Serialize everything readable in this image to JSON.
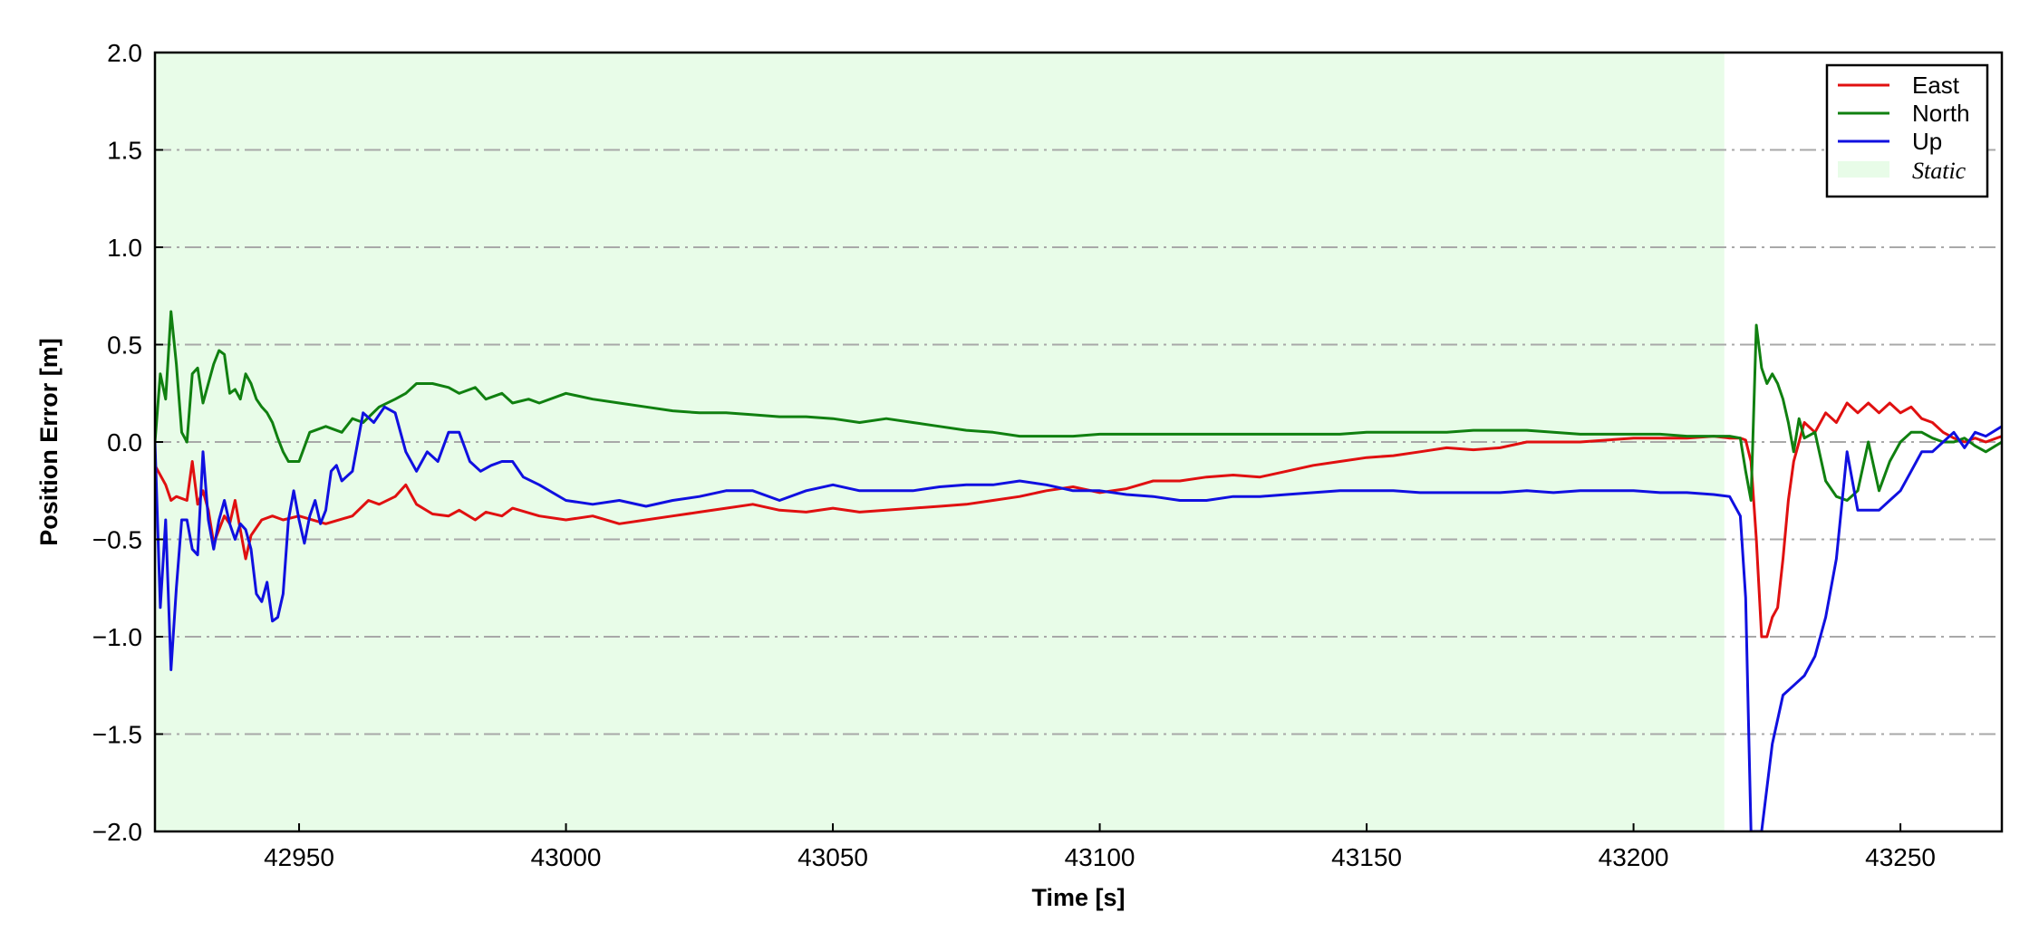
{
  "chart_data": {
    "type": "line",
    "xlabel": "Time [s]",
    "ylabel": "Position Error [m]",
    "xlim": [
      42923,
      43269
    ],
    "ylim": [
      -2.0,
      2.0
    ],
    "xticks": [
      42950,
      43000,
      43050,
      43100,
      43150,
      43200,
      43250
    ],
    "xtick_labels": [
      "42950",
      "43000",
      "43050",
      "43100",
      "43150",
      "43200",
      "43250"
    ],
    "yticks": [
      -2.0,
      -1.5,
      -1.0,
      -0.5,
      0.0,
      0.5,
      1.0,
      1.5,
      2.0
    ],
    "ytick_labels": [
      "−2.0",
      "−1.5",
      "−1.0",
      "−0.5",
      "0.0",
      "0.5",
      "1.0",
      "1.5",
      "2.0"
    ],
    "grid": "horizontal dash-dot",
    "legend_position": "top-right",
    "static_span": {
      "label": "Static",
      "start": 42923,
      "end": 43217,
      "color": "#e8fce8"
    },
    "series": [
      {
        "name": "East",
        "color": "#e01010",
        "x": [
          42923,
          42925,
          42926,
          42927,
          42929,
          42930,
          42931,
          42932,
          42933,
          42934,
          42935,
          42936,
          42937,
          42938,
          42939,
          42940,
          42941,
          42943,
          42945,
          42947,
          42950,
          42955,
          42960,
          42963,
          42965,
          42968,
          42970,
          42972,
          42975,
          42978,
          42980,
          42983,
          42985,
          42988,
          42990,
          42995,
          43000,
          43005,
          43010,
          43015,
          43020,
          43025,
          43030,
          43035,
          43040,
          43045,
          43050,
          43055,
          43060,
          43065,
          43070,
          43075,
          43080,
          43085,
          43090,
          43095,
          43100,
          43105,
          43110,
          43115,
          43120,
          43125,
          43130,
          43135,
          43140,
          43145,
          43150,
          43155,
          43160,
          43165,
          43170,
          43175,
          43180,
          43185,
          43190,
          43195,
          43200,
          43205,
          43210,
          43215,
          43218,
          43220,
          43221,
          43222,
          43223,
          43224,
          43225,
          43226,
          43227,
          43228,
          43229,
          43230,
          43232,
          43234,
          43236,
          43238,
          43240,
          43242,
          43244,
          43246,
          43248,
          43250,
          43252,
          43254,
          43256,
          43258,
          43260,
          43262,
          43264,
          43266,
          43269
        ],
        "values": [
          -0.12,
          -0.22,
          -0.3,
          -0.28,
          -0.3,
          -0.1,
          -0.32,
          -0.25,
          -0.35,
          -0.52,
          -0.45,
          -0.38,
          -0.42,
          -0.3,
          -0.45,
          -0.6,
          -0.48,
          -0.4,
          -0.38,
          -0.4,
          -0.38,
          -0.42,
          -0.38,
          -0.3,
          -0.32,
          -0.28,
          -0.22,
          -0.32,
          -0.37,
          -0.38,
          -0.35,
          -0.4,
          -0.36,
          -0.38,
          -0.34,
          -0.38,
          -0.4,
          -0.38,
          -0.42,
          -0.4,
          -0.38,
          -0.36,
          -0.34,
          -0.32,
          -0.35,
          -0.36,
          -0.34,
          -0.36,
          -0.35,
          -0.34,
          -0.33,
          -0.32,
          -0.3,
          -0.28,
          -0.25,
          -0.23,
          -0.26,
          -0.24,
          -0.2,
          -0.2,
          -0.18,
          -0.17,
          -0.18,
          -0.15,
          -0.12,
          -0.1,
          -0.08,
          -0.07,
          -0.05,
          -0.03,
          -0.04,
          -0.03,
          0.0,
          0.0,
          0.0,
          0.01,
          0.02,
          0.02,
          0.02,
          0.03,
          0.02,
          0.02,
          0.01,
          -0.1,
          -0.5,
          -1.0,
          -1.0,
          -0.9,
          -0.85,
          -0.6,
          -0.3,
          -0.1,
          0.1,
          0.05,
          0.15,
          0.1,
          0.2,
          0.15,
          0.2,
          0.15,
          0.2,
          0.15,
          0.18,
          0.12,
          0.1,
          0.05,
          0.02,
          0.0,
          0.02,
          0.0,
          0.03
        ]
      },
      {
        "name": "North",
        "color": "#108010",
        "x": [
          42923,
          42924,
          42925,
          42926,
          42927,
          42928,
          42929,
          42930,
          42931,
          42932,
          42933,
          42934,
          42935,
          42936,
          42937,
          42938,
          42939,
          42940,
          42941,
          42942,
          42943,
          42944,
          42945,
          42946,
          42947,
          42948,
          42950,
          42952,
          42955,
          42958,
          42960,
          42962,
          42965,
          42968,
          42970,
          42972,
          42975,
          42978,
          42980,
          42983,
          42985,
          42988,
          42990,
          42993,
          42995,
          43000,
          43005,
          43010,
          43015,
          43020,
          43025,
          43030,
          43035,
          43040,
          43045,
          43050,
          43055,
          43060,
          43065,
          43070,
          43075,
          43080,
          43085,
          43090,
          43095,
          43100,
          43105,
          43110,
          43115,
          43120,
          43125,
          43130,
          43135,
          43140,
          43145,
          43150,
          43155,
          43160,
          43165,
          43170,
          43175,
          43180,
          43185,
          43190,
          43195,
          43200,
          43205,
          43210,
          43215,
          43218,
          43220,
          43221,
          43222,
          43223,
          43224,
          43225,
          43226,
          43227,
          43228,
          43229,
          43230,
          43231,
          43232,
          43234,
          43236,
          43238,
          43240,
          43242,
          43244,
          43246,
          43248,
          43250,
          43252,
          43254,
          43256,
          43258,
          43260,
          43262,
          43264,
          43266,
          43269
        ],
        "values": [
          0.0,
          0.35,
          0.22,
          0.67,
          0.4,
          0.05,
          0.0,
          0.35,
          0.38,
          0.2,
          0.3,
          0.4,
          0.47,
          0.45,
          0.25,
          0.27,
          0.22,
          0.35,
          0.3,
          0.22,
          0.18,
          0.15,
          0.1,
          0.02,
          -0.05,
          -0.1,
          -0.1,
          0.05,
          0.08,
          0.05,
          0.12,
          0.1,
          0.18,
          0.22,
          0.25,
          0.3,
          0.3,
          0.28,
          0.25,
          0.28,
          0.22,
          0.25,
          0.2,
          0.22,
          0.2,
          0.25,
          0.22,
          0.2,
          0.18,
          0.16,
          0.15,
          0.15,
          0.14,
          0.13,
          0.13,
          0.12,
          0.1,
          0.12,
          0.1,
          0.08,
          0.06,
          0.05,
          0.03,
          0.03,
          0.03,
          0.04,
          0.04,
          0.04,
          0.04,
          0.04,
          0.04,
          0.04,
          0.04,
          0.04,
          0.04,
          0.05,
          0.05,
          0.05,
          0.05,
          0.06,
          0.06,
          0.06,
          0.05,
          0.04,
          0.04,
          0.04,
          0.04,
          0.03,
          0.03,
          0.03,
          0.02,
          -0.15,
          -0.3,
          0.6,
          0.38,
          0.3,
          0.35,
          0.3,
          0.22,
          0.1,
          -0.05,
          0.12,
          0.02,
          0.05,
          -0.2,
          -0.28,
          -0.3,
          -0.25,
          0.0,
          -0.25,
          -0.1,
          0.0,
          0.05,
          0.05,
          0.02,
          0.0,
          0.0,
          0.02,
          -0.02,
          -0.05,
          0.0
        ]
      },
      {
        "name": "Up",
        "color": "#1010e0",
        "x": [
          42923,
          42924,
          42925,
          42926,
          42927,
          42928,
          42929,
          42930,
          42931,
          42932,
          42933,
          42934,
          42935,
          42936,
          42937,
          42938,
          42939,
          42940,
          42941,
          42942,
          42943,
          42944,
          42945,
          42946,
          42947,
          42948,
          42949,
          42950,
          42951,
          42952,
          42953,
          42954,
          42955,
          42956,
          42957,
          42958,
          42960,
          42962,
          42964,
          42966,
          42968,
          42970,
          42972,
          42974,
          42976,
          42978,
          42980,
          42982,
          42984,
          42986,
          42988,
          42990,
          42992,
          42995,
          43000,
          43005,
          43010,
          43015,
          43020,
          43025,
          43030,
          43035,
          43040,
          43045,
          43050,
          43055,
          43060,
          43065,
          43070,
          43075,
          43080,
          43085,
          43090,
          43095,
          43100,
          43105,
          43110,
          43115,
          43120,
          43125,
          43130,
          43135,
          43140,
          43145,
          43150,
          43155,
          43160,
          43165,
          43170,
          43175,
          43180,
          43185,
          43190,
          43195,
          43200,
          43205,
          43210,
          43215,
          43218,
          43220,
          43221,
          43222,
          43223,
          43224,
          43226,
          43228,
          43230,
          43232,
          43234,
          43236,
          43238,
          43240,
          43242,
          43244,
          43246,
          43248,
          43250,
          43252,
          43254,
          43256,
          43258,
          43260,
          43262,
          43264,
          43266,
          43269
        ],
        "values": [
          0.0,
          -0.85,
          -0.4,
          -1.17,
          -0.75,
          -0.4,
          -0.4,
          -0.55,
          -0.58,
          -0.05,
          -0.4,
          -0.55,
          -0.4,
          -0.3,
          -0.42,
          -0.5,
          -0.42,
          -0.45,
          -0.55,
          -0.78,
          -0.82,
          -0.72,
          -0.92,
          -0.9,
          -0.78,
          -0.4,
          -0.25,
          -0.4,
          -0.52,
          -0.38,
          -0.3,
          -0.42,
          -0.35,
          -0.15,
          -0.12,
          -0.2,
          -0.15,
          0.15,
          0.1,
          0.18,
          0.15,
          -0.05,
          -0.15,
          -0.05,
          -0.1,
          0.05,
          0.05,
          -0.1,
          -0.15,
          -0.12,
          -0.1,
          -0.1,
          -0.18,
          -0.22,
          -0.3,
          -0.32,
          -0.3,
          -0.33,
          -0.3,
          -0.28,
          -0.25,
          -0.25,
          -0.3,
          -0.25,
          -0.22,
          -0.25,
          -0.25,
          -0.25,
          -0.23,
          -0.22,
          -0.22,
          -0.2,
          -0.22,
          -0.25,
          -0.25,
          -0.27,
          -0.28,
          -0.3,
          -0.3,
          -0.28,
          -0.28,
          -0.27,
          -0.26,
          -0.25,
          -0.25,
          -0.25,
          -0.26,
          -0.26,
          -0.26,
          -0.26,
          -0.25,
          -0.26,
          -0.25,
          -0.25,
          -0.25,
          -0.26,
          -0.26,
          -0.27,
          -0.28,
          -0.38,
          -0.8,
          -2.0,
          -2.0,
          -2.0,
          -1.55,
          -1.3,
          -1.25,
          -1.2,
          -1.1,
          -0.9,
          -0.6,
          -0.05,
          -0.35,
          -0.35,
          -0.35,
          -0.3,
          -0.25,
          -0.15,
          -0.05,
          -0.05,
          0.0,
          0.05,
          -0.03,
          0.05,
          0.03,
          0.08
        ]
      }
    ]
  }
}
